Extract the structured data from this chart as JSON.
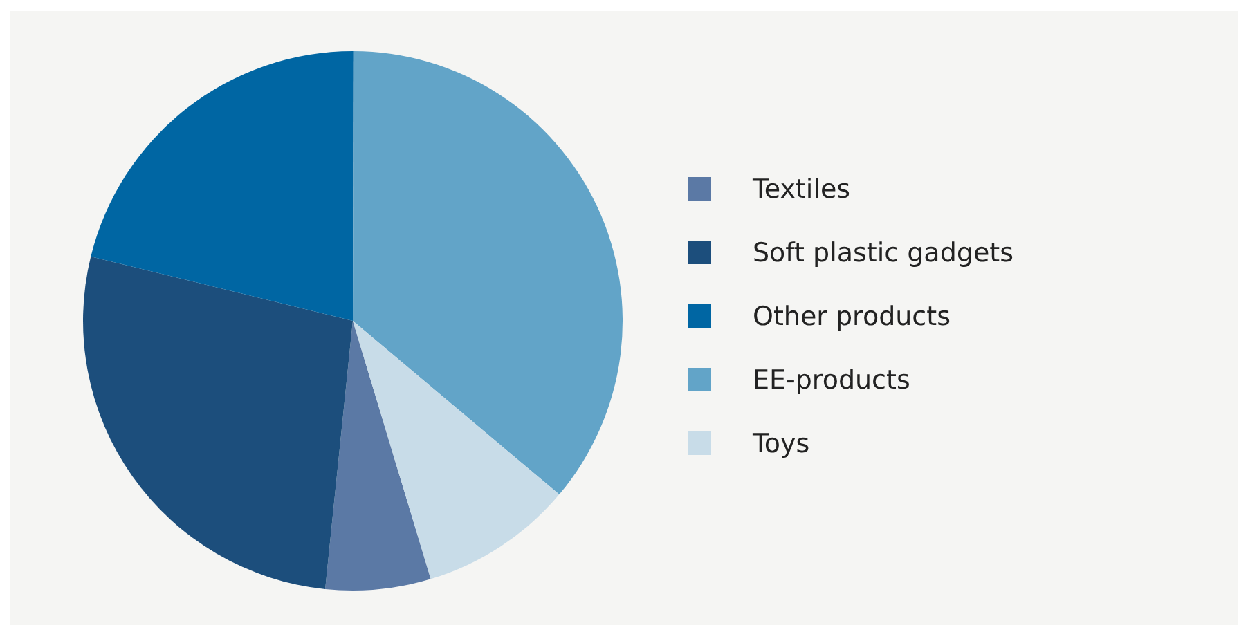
{
  "chart_data": {
    "type": "pie",
    "categories": [
      "Textiles",
      "Soft plastic gadgets",
      "Other products",
      "EE-products",
      "Toys"
    ],
    "values": [
      6.3,
      27.2,
      21.2,
      36.1,
      9.2
    ],
    "colors": [
      "#5b79a5",
      "#1c4e7c",
      "#0066a3",
      "#62a4c8",
      "#c8dce8"
    ],
    "legend": "right"
  }
}
